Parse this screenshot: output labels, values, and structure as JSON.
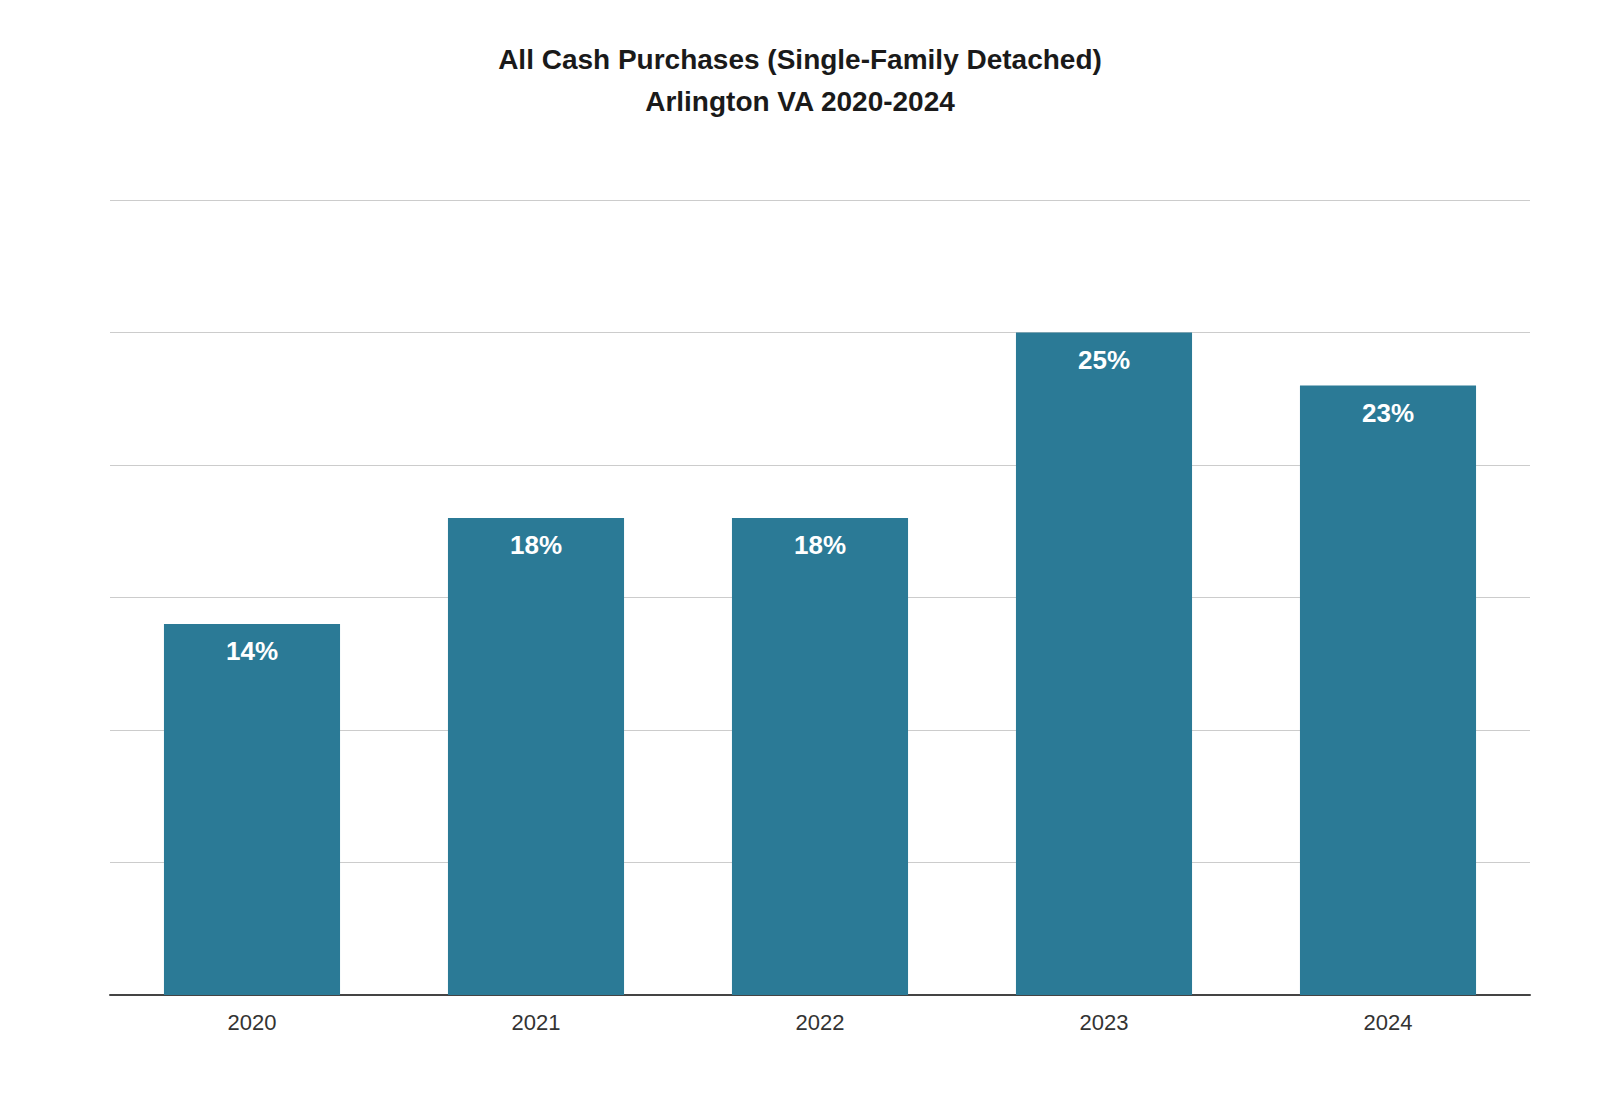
{
  "chart_data": {
    "type": "bar",
    "title": "All Cash Purchases (Single-Family Detached)",
    "subtitle": "Arlington VA 2020-2024",
    "categories": [
      "2020",
      "2021",
      "2022",
      "2023",
      "2024"
    ],
    "values": [
      14,
      18,
      18,
      25,
      23
    ],
    "value_labels": [
      "14%",
      "18%",
      "18%",
      "25%",
      "23%"
    ],
    "data_labels": true,
    "color": "#2B7A96",
    "ylim": [
      0,
      30
    ],
    "yticks": [
      0,
      5,
      10,
      15,
      20,
      25,
      30
    ],
    "grid": true,
    "tick_labels": "x"
  }
}
